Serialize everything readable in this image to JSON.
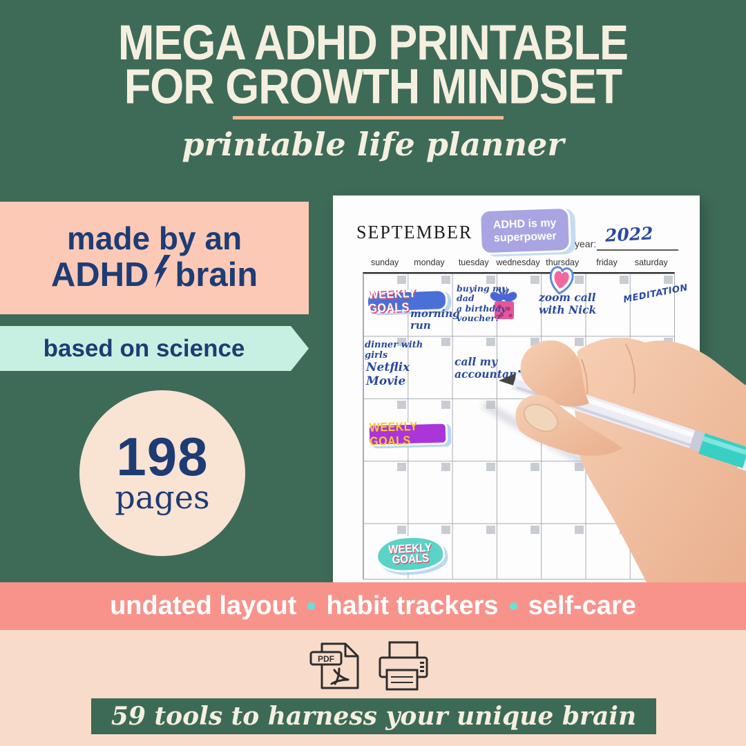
{
  "header": {
    "title_line1": "MEGA ADHD PRINTABLE",
    "title_line2": "FOR GROWTH MINDSET",
    "subtitle": "printable life planner"
  },
  "left_panel": {
    "made_by_line1": "made by an",
    "made_by_word1": "ADHD",
    "made_by_word2": "brain",
    "science_banner": "based on science",
    "pages_count": "198",
    "pages_label": "pages"
  },
  "calendar": {
    "month": "SEPTEMBER",
    "superpower_sticker": [
      "ADHD is my",
      "superpower"
    ],
    "year_label": "year:",
    "year_value": "2022",
    "day_headers": [
      "sunday",
      "monday",
      "tuesday",
      "wednesday",
      "thursday",
      "friday",
      "saturday"
    ],
    "weekly_goals_label": "WEEKLY GOALS",
    "weekly_goals_teal": [
      "WEEKLY",
      "GOALS"
    ],
    "notes": {
      "morning_run": [
        "morning",
        "run"
      ],
      "birthday": [
        "buying my",
        "dad",
        "a birthday",
        "voucher?"
      ],
      "zoom_call": [
        "zoom call",
        "with Nick"
      ],
      "meditation": "MEDITATION",
      "dinner": [
        "dinner with",
        "girls"
      ],
      "netflix": [
        "Netflix",
        "Movie"
      ],
      "accountant": [
        "call my",
        "accountant"
      ]
    }
  },
  "features_banner": {
    "items": [
      "undated layout",
      "habit trackers",
      "self-care"
    ]
  },
  "file_icons": {
    "pdf_label": "PDF"
  },
  "footer": {
    "tagline": "59 tools to harness your unique brain"
  },
  "colors": {
    "background_green": "#3e6b58",
    "cream": "#f5efe0",
    "divider_peach": "#f0b993",
    "badge_pink": "#fbc9b5",
    "navy": "#1e3c74",
    "mint": "#c8f0e2",
    "circle_cream": "#f9e3d3",
    "salmon_banner": "#f8938c",
    "peach_section": "#f8dcc9",
    "footer_green": "#3d6a56",
    "handwriting_blue": "#2b4a9e",
    "sticker_lavender": "#a9a5e3",
    "sticker_blue": "#4a70d8",
    "sticker_purple": "#aa35d8",
    "sticker_yellow": "#fbc928",
    "sticker_teal": "#5bd3c7",
    "pen_grip_teal": "#3acfc4"
  }
}
